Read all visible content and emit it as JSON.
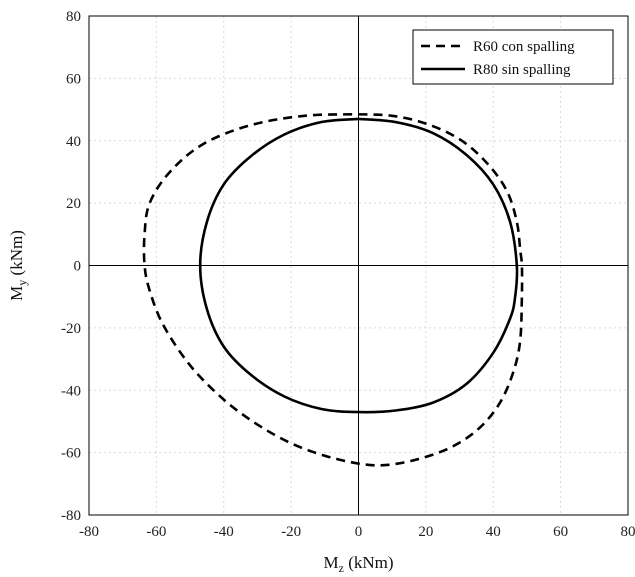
{
  "chart_data": {
    "type": "line",
    "xlabel_main": "M",
    "xlabel_sub": "z",
    "xlabel_unit": " (kNm)",
    "ylabel_main": "M",
    "ylabel_sub": "y",
    "ylabel_unit": " (kNm)",
    "xlim": [
      -80,
      80
    ],
    "ylim": [
      -80,
      80
    ],
    "xticks": [
      -80,
      -60,
      -40,
      -20,
      0,
      20,
      40,
      60,
      80
    ],
    "yticks": [
      -80,
      -60,
      -40,
      -20,
      0,
      20,
      40,
      60,
      80
    ],
    "grid": true,
    "legend_position": "top-right",
    "series": [
      {
        "name": "R60 con spalling",
        "style": "dashed",
        "color": "#000000",
        "x": [
          0,
          10,
          20,
          30,
          38,
          44,
          47,
          48,
          48.5,
          48.5,
          48,
          46,
          42,
          36,
          28,
          18,
          8,
          0,
          -10,
          -20,
          -30,
          -40,
          -50,
          -58,
          -62,
          -63.5,
          -63.5,
          -62,
          -56,
          -46,
          -32,
          -16,
          0
        ],
        "y": [
          48.5,
          48,
          45.5,
          40.5,
          33,
          24,
          14,
          5,
          0,
          -10,
          -24,
          -34,
          -44,
          -52,
          -58,
          -62,
          -64,
          -63.5,
          -61,
          -57,
          -51,
          -43,
          -32,
          -19,
          -8,
          0,
          10,
          20,
          30,
          39,
          45,
          48,
          48.5
        ]
      },
      {
        "name": "R80 sin spalling",
        "style": "solid",
        "color": "#000000",
        "x": [
          0,
          11,
          22,
          32,
          40,
          45,
          47,
          46.5,
          45,
          40,
          32,
          22,
          11,
          0,
          -11,
          -22,
          -32,
          -40,
          -45,
          -47,
          -45,
          -40,
          -32,
          -22,
          -11,
          0
        ],
        "y": [
          47,
          46,
          42.5,
          35.5,
          26,
          14,
          0,
          -10,
          -17,
          -28,
          -38,
          -44,
          -46.5,
          -47,
          -46,
          -42,
          -35,
          -26,
          -14,
          0,
          14,
          26,
          35,
          42,
          46,
          47
        ]
      }
    ]
  }
}
